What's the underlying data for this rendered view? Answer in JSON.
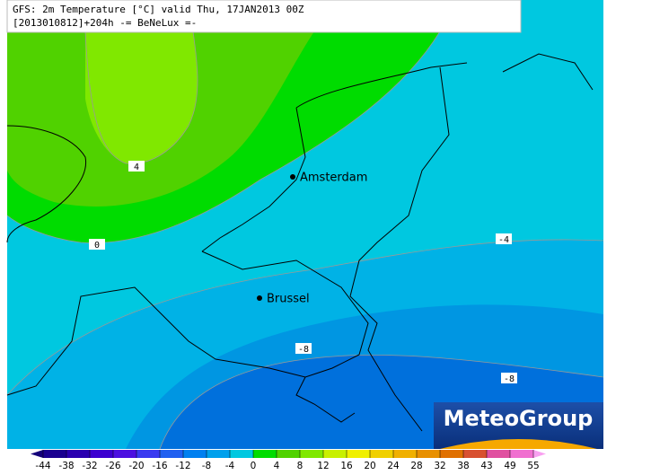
{
  "header": {
    "line1": "GFS: 2m Temperature [°C] valid Thu, 17JAN2013 00Z",
    "line2": "[2013010812]+204h  -= BeNeLux =-"
  },
  "cities": [
    {
      "label": "Amsterdam"
    },
    {
      "label": "Brussel"
    }
  ],
  "contour_labels": [
    "4",
    "0",
    "-4",
    "-8",
    "-8"
  ],
  "logo": "MeteoGroup",
  "legend": {
    "ticks": [
      -44,
      -38,
      -32,
      -26,
      -20,
      -16,
      -12,
      -8,
      -4,
      0,
      4,
      8,
      12,
      16,
      20,
      24,
      28,
      32,
      38,
      43,
      49,
      55
    ]
  }
}
